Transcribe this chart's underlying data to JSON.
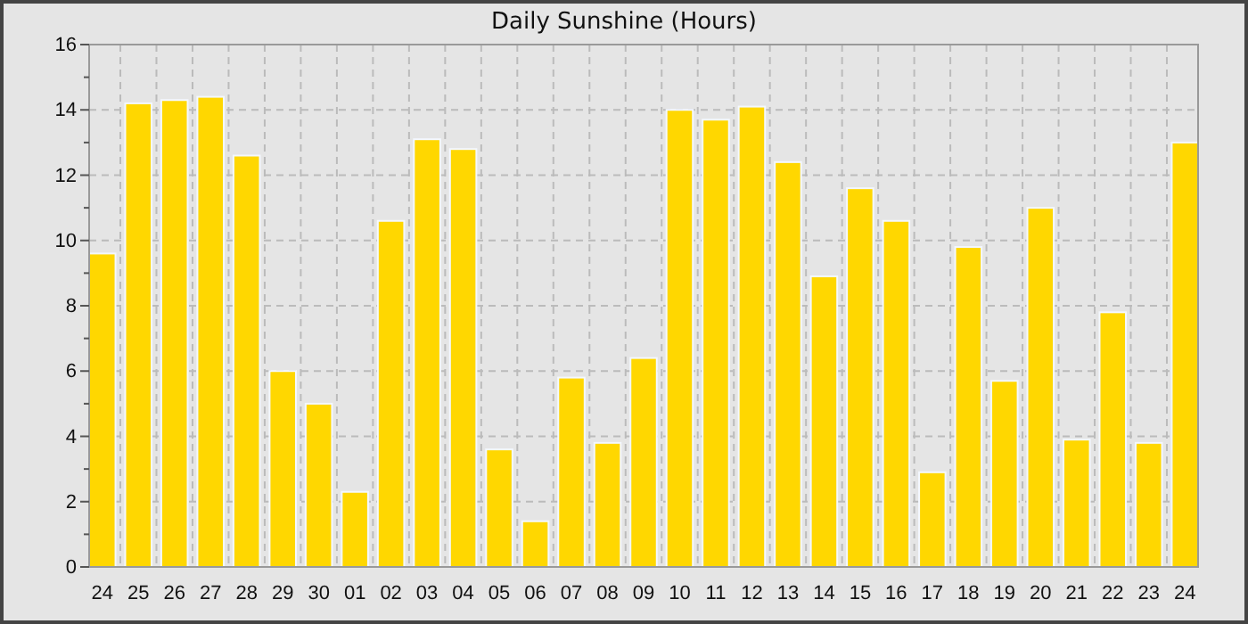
{
  "chart_data": {
    "type": "bar",
    "title": "Daily Sunshine (Hours)",
    "categories": [
      "24",
      "25",
      "26",
      "27",
      "28",
      "29",
      "30",
      "01",
      "02",
      "03",
      "04",
      "05",
      "06",
      "07",
      "08",
      "09",
      "10",
      "11",
      "12",
      "13",
      "14",
      "15",
      "16",
      "17",
      "18",
      "19",
      "20",
      "21",
      "22",
      "23",
      "24"
    ],
    "values": [
      9.6,
      14.2,
      14.3,
      14.4,
      12.6,
      6.0,
      5.0,
      2.3,
      10.6,
      13.1,
      12.8,
      3.6,
      1.4,
      5.8,
      3.8,
      6.4,
      14.0,
      13.7,
      14.1,
      12.4,
      8.9,
      11.6,
      10.6,
      2.9,
      9.8,
      5.7,
      11.0,
      3.9,
      7.8,
      3.8,
      13.0
    ],
    "color": "#ffd700",
    "ylim": [
      0,
      16
    ],
    "yticks": [
      0,
      {
        "value": 1,
        "label": null
      },
      2,
      {
        "value": 3,
        "label": null
      },
      4,
      {
        "value": 5,
        "label": null
      },
      6,
      {
        "value": 7,
        "label": null
      },
      8,
      {
        "value": 9,
        "label": null
      },
      10,
      {
        "value": 11,
        "label": null
      },
      12,
      {
        "value": 13,
        "label": null
      },
      14,
      {
        "value": 15,
        "label": null
      },
      16
    ],
    "grid": true
  }
}
